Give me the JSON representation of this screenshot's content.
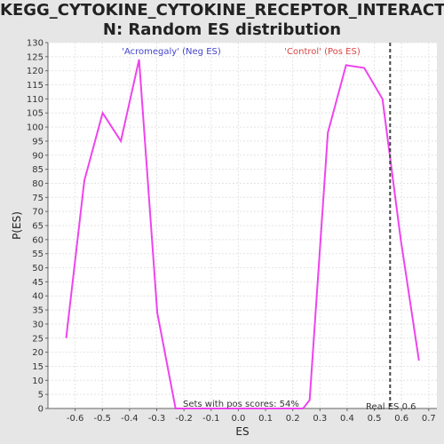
{
  "chart_data": {
    "type": "line",
    "title_line1": "KEGG_CYTOKINE_CYTOKINE_RECEPTOR_INTERACTIO",
    "title_line2": "N: Random ES distribution",
    "xlabel": "ES",
    "ylabel": "P(ES)",
    "xlim": [
      -0.7,
      0.73
    ],
    "ylim": [
      0,
      130
    ],
    "x_ticks": [
      -0.6,
      -0.5,
      -0.4,
      -0.3,
      -0.2,
      -0.1,
      0.0,
      0.1,
      0.2,
      0.3,
      0.4,
      0.5,
      0.6,
      0.7
    ],
    "x_tick_labels": [
      "-0.6",
      "-0.5",
      "-0.4",
      "-0.3",
      "-0.2",
      "-0.1",
      "0.0",
      "0.1",
      "0.2",
      "0.3",
      "0.4",
      "0.5",
      "0.6",
      "0.7"
    ],
    "y_ticks": [
      0,
      5,
      10,
      15,
      20,
      25,
      30,
      35,
      40,
      45,
      50,
      55,
      60,
      65,
      70,
      75,
      80,
      85,
      90,
      95,
      100,
      105,
      110,
      115,
      120,
      125,
      130
    ],
    "grid": true,
    "series": [
      {
        "color": "#ee44ee",
        "x": [
          -0.633,
          -0.566,
          -0.499,
          -0.432,
          -0.365,
          -0.298,
          -0.231,
          -0.164,
          -0.097,
          -0.03,
          0.037,
          0.104,
          0.171,
          0.238,
          0.262,
          0.329,
          0.396,
          0.463,
          0.53,
          0.597,
          0.664
        ],
        "y": [
          25,
          81,
          105,
          95,
          124,
          34,
          0,
          0,
          0,
          0,
          0,
          0,
          0,
          0,
          3,
          98,
          122,
          121,
          110,
          60,
          17
        ]
      }
    ],
    "real_es": 0.558,
    "annotations": {
      "neg": "'Acromegaly' (Neg ES)",
      "pos": "'Control' (Pos ES)",
      "pos_scores": "Sets with pos scores: 54%",
      "real_es": "Real ES 0.6"
    },
    "colors": {
      "neg": "#4444cc",
      "pos": "#dd4444",
      "line": "#ee44ee",
      "real_es_line": "#444444"
    }
  }
}
